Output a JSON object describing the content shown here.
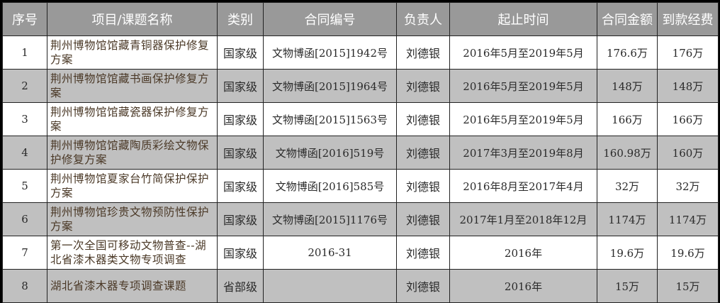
{
  "headers": [
    "序号",
    "项目/课题名称",
    "类别",
    "合同编号",
    "负责人",
    "起止时间",
    "合同金额",
    "到款经费"
  ],
  "rows": [
    {
      "no": "1",
      "name": "荆州博物馆馆藏青铜器保护修复方案",
      "category": "国家级",
      "contract": "文物博函[2015]1942号",
      "person": "刘德银",
      "period": "2016年5月至2019年5月",
      "amount": "176.6万",
      "received": "176万"
    },
    {
      "no": "2",
      "name": "荆州博物馆馆藏书画保护修复方案",
      "category": "国家级",
      "contract": "文物博函[2015]1964号",
      "person": "刘德银",
      "period": "2016年5月至2019年5月",
      "amount": "148万",
      "received": "148万"
    },
    {
      "no": "3",
      "name": "荆州博物馆馆藏瓷器保护修复方案",
      "category": "国家级",
      "contract": "文物博函[2015]1563号",
      "person": "刘德银",
      "period": "2016年5月至2019年5月",
      "amount": "166万",
      "received": "166万"
    },
    {
      "no": "4",
      "name": "荆州博物馆馆藏陶质彩绘文物保护修复方案",
      "category": "国家级",
      "contract": "文物博函[2016]519号",
      "person": "刘德银",
      "period": "2017年3月至2019年8月",
      "amount": "160.98万",
      "received": "160万"
    },
    {
      "no": "5",
      "name": "荆州博物馆夏家台竹简保护保护方案",
      "category": "国家级",
      "contract": "文物博函[2016]585号",
      "person": "刘德银",
      "period": "2016年8月至2017年4月",
      "amount": "32万",
      "received": "32万"
    },
    {
      "no": "6",
      "name": "荆州博物馆珍贵文物预防性保护方案",
      "category": "国家级",
      "contract": "文物博函[2015]1176号",
      "person": "刘德银",
      "period": "2017年1月至2018年12月",
      "amount": "1174万",
      "received": "1174万"
    },
    {
      "no": "7",
      "name": "第一次全国可移动文物普查--湖北省漆木器类文物专项调查",
      "category": "国家级",
      "contract": "2016-31",
      "person": "刘德银",
      "period": "2016年",
      "amount": "19.6万",
      "received": "19.6万"
    },
    {
      "no": "8",
      "name": "湖北省漆木器专项调查课题",
      "category": "省部级",
      "contract": "",
      "person": "刘德银",
      "period": "2016年",
      "amount": "15万",
      "received": "15万"
    }
  ]
}
